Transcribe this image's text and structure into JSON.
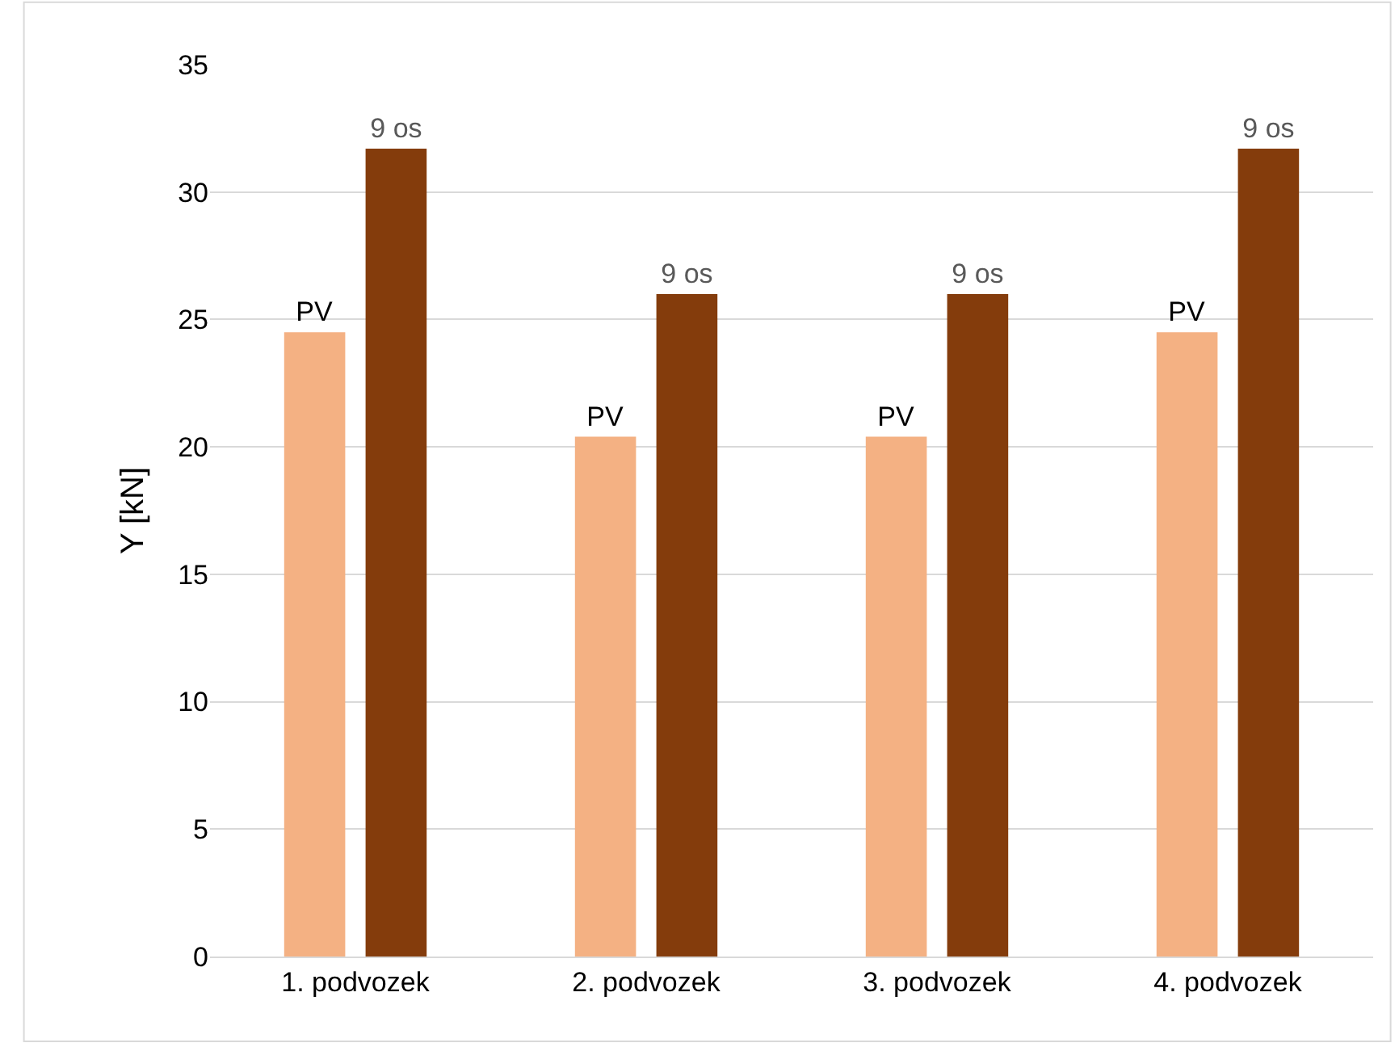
{
  "chart_data": {
    "type": "bar",
    "ylabel": "Y [kN]",
    "categories": [
      "1. podvozek",
      "2. podvozek",
      "3. podvozek",
      "4. podvozek"
    ],
    "series": [
      {
        "name": "PV",
        "color": "#f4b183",
        "values": [
          24.5,
          20.4,
          20.4,
          24.5
        ]
      },
      {
        "name": "9 os",
        "color": "#843c0c",
        "values": [
          31.7,
          26.0,
          26.0,
          31.7
        ]
      }
    ],
    "ylim": [
      0,
      35
    ],
    "yticks": [
      0,
      5,
      10,
      15,
      20,
      25,
      30,
      35
    ],
    "grid": "y",
    "legend": false
  }
}
